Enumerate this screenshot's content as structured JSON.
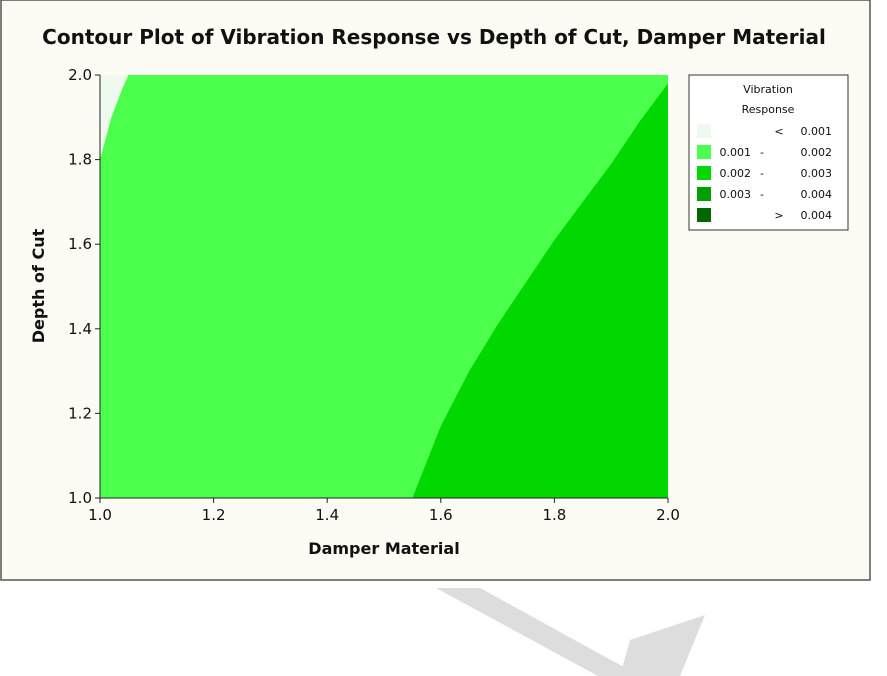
{
  "chart_data": {
    "type": "contour",
    "title": "Contour Plot of Vibration Response vs Depth of Cut, Damper Material",
    "xlabel": "Damper Material",
    "ylabel": "Depth of Cut",
    "xlim": [
      1.0,
      2.0
    ],
    "ylim": [
      1.0,
      2.0
    ],
    "x_ticks": [
      "1.0",
      "1.2",
      "1.4",
      "1.6",
      "1.8",
      "2.0"
    ],
    "y_ticks": [
      "1.0",
      "1.2",
      "1.4",
      "1.6",
      "1.8",
      "2.0"
    ],
    "grid": false,
    "legend": {
      "placement": "right",
      "title_lines": [
        "Vibration",
        "Response"
      ],
      "entries": [
        {
          "op": "<",
          "low": "",
          "high": "0.001",
          "color": "#eefaee"
        },
        {
          "op": "-",
          "low": "0.001",
          "high": "0.002",
          "color": "#4cff4c"
        },
        {
          "op": "-",
          "low": "0.002",
          "high": "0.003",
          "color": "#00d800"
        },
        {
          "op": "-",
          "low": "0.003",
          "high": "0.004",
          "color": "#00a000"
        },
        {
          "op": ">",
          "low": "",
          "high": "0.004",
          "color": "#006600"
        }
      ]
    },
    "regions": [
      {
        "level": "0.001 - 0.002",
        "color": "#4cff4c",
        "fill": "background"
      },
      {
        "level": "< 0.001",
        "color": "#eefaee",
        "boundary": [
          [
            1.0,
            1.8
          ],
          [
            1.02,
            1.9
          ],
          [
            1.04,
            1.97
          ],
          [
            1.05,
            2.0
          ]
        ]
      },
      {
        "level": "0.002 - 0.003",
        "color": "#00d800",
        "boundary": [
          [
            1.55,
            1.0
          ],
          [
            1.6,
            1.17
          ],
          [
            1.65,
            1.3
          ],
          [
            1.7,
            1.41
          ],
          [
            1.75,
            1.51
          ],
          [
            1.8,
            1.61
          ],
          [
            1.85,
            1.7
          ],
          [
            1.9,
            1.79
          ],
          [
            1.95,
            1.89
          ],
          [
            2.0,
            1.98
          ]
        ]
      }
    ]
  },
  "colors": {
    "panel_bg": "#fcfcf5",
    "border": "#555555",
    "arrow": "#dddddd"
  }
}
